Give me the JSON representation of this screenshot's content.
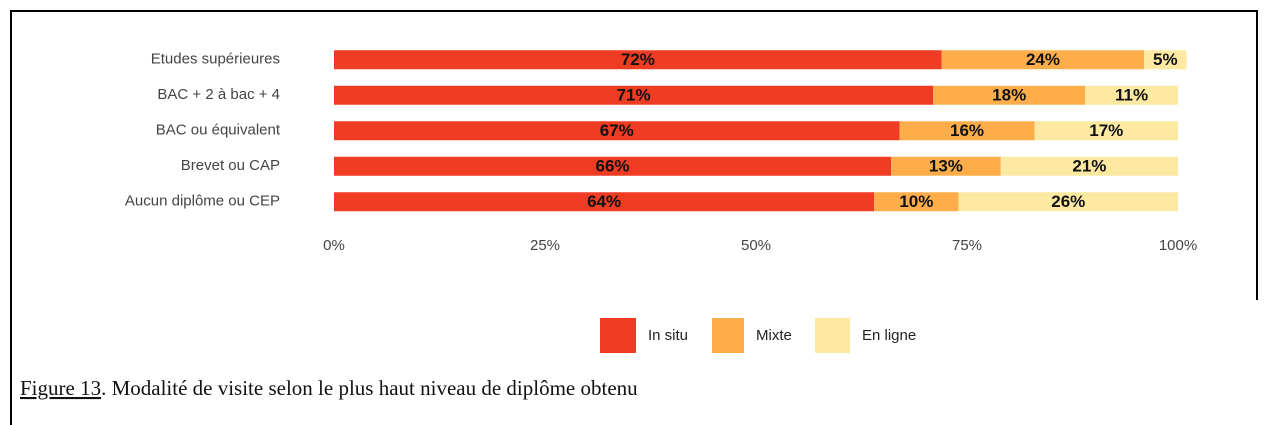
{
  "chart_data": {
    "type": "stacked-bar-horizontal",
    "categories": [
      "Etudes supérieures",
      "BAC + 2 à bac + 4",
      "BAC ou équivalent",
      "Brevet ou CAP",
      "Aucun diplôme ou CEP"
    ],
    "series": [
      {
        "name": "In situ",
        "color": "#f03c22",
        "values": [
          72,
          71,
          67,
          66,
          64
        ],
        "value_labels": [
          "72%",
          "71%",
          "67%",
          "66%",
          "64%"
        ]
      },
      {
        "name": "Mixte",
        "color": "#fdae4b",
        "values": [
          24,
          18,
          16,
          13,
          10
        ],
        "value_labels": [
          "24%",
          "18%",
          "16%",
          "13%",
          "10%"
        ]
      },
      {
        "name": "En ligne",
        "color": "#fde9a1",
        "values": [
          5,
          11,
          17,
          21,
          26
        ],
        "value_labels": [
          "5%",
          "11%",
          "17%",
          "21%",
          "26%"
        ]
      }
    ],
    "xlim": [
      0,
      100
    ],
    "xticks": [
      {
        "value": 0,
        "label": "0%"
      },
      {
        "value": 25,
        "label": "25%"
      },
      {
        "value": 50,
        "label": "50%"
      },
      {
        "value": 75,
        "label": "75%"
      },
      {
        "value": 100,
        "label": "100%"
      }
    ],
    "legend": "bottom"
  },
  "caption": {
    "label": "Figure 13",
    "text": ". Modalité de visite selon le plus haut niveau de diplôme obtenu"
  }
}
